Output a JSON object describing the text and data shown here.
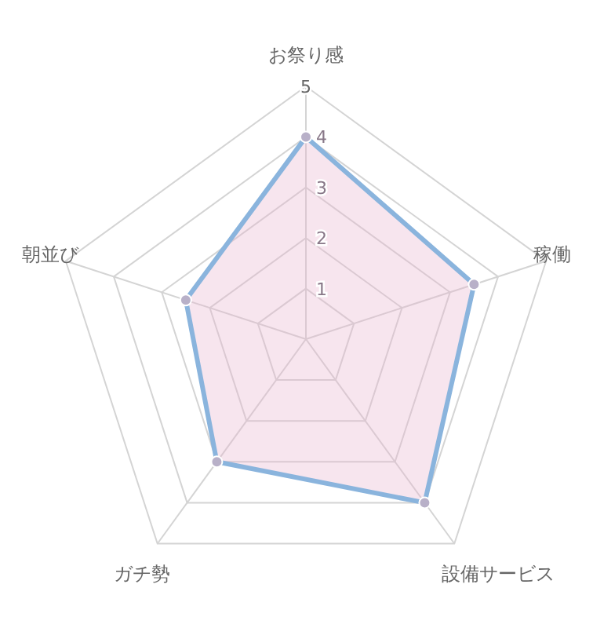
{
  "chart_data": {
    "type": "radar",
    "categories": [
      "お祭り感",
      "稼働",
      "設備サービス",
      "ガチ勢",
      "朝並び"
    ],
    "ylim": [
      0,
      5
    ],
    "yticks": [
      1,
      2,
      3,
      4,
      5
    ],
    "grid": true,
    "marker": "circle",
    "series": [
      {
        "color": "#8ab4dd",
        "values": [
          4,
          3.5,
          4,
          3,
          2.5
        ]
      }
    ]
  }
}
